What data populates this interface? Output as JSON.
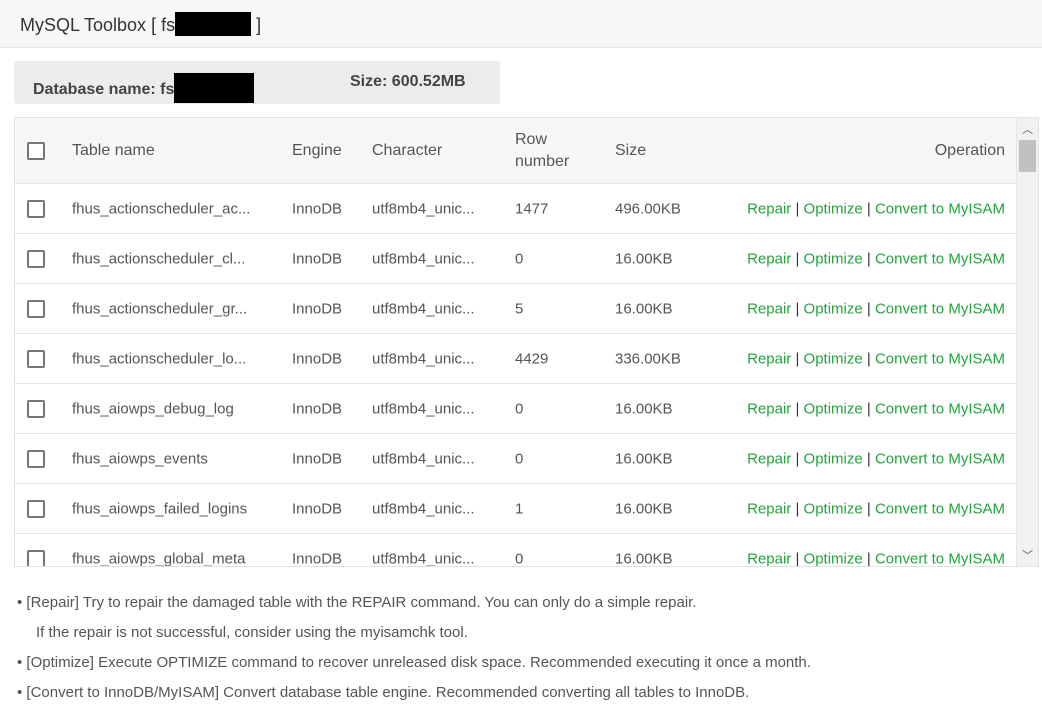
{
  "header": {
    "title_prefix": "MySQL Toolbox [ fs",
    "title_suffix": " ]"
  },
  "info": {
    "db_label": "Database name:  fs",
    "size_label": "Size:  600.52MB"
  },
  "table": {
    "columns": [
      "Table name",
      "Engine",
      "Character",
      "Row number",
      "Size",
      "Operation"
    ],
    "rows": [
      {
        "name": "fhus_actionscheduler_ac...",
        "engine": "InnoDB",
        "charset": "utf8mb4_unic...",
        "rows": "1477",
        "size": "496.00KB"
      },
      {
        "name": "fhus_actionscheduler_cl...",
        "engine": "InnoDB",
        "charset": "utf8mb4_unic...",
        "rows": "0",
        "size": "16.00KB"
      },
      {
        "name": "fhus_actionscheduler_gr...",
        "engine": "InnoDB",
        "charset": "utf8mb4_unic...",
        "rows": "5",
        "size": "16.00KB"
      },
      {
        "name": "fhus_actionscheduler_lo...",
        "engine": "InnoDB",
        "charset": "utf8mb4_unic...",
        "rows": "4429",
        "size": "336.00KB"
      },
      {
        "name": "fhus_aiowps_debug_log",
        "engine": "InnoDB",
        "charset": "utf8mb4_unic...",
        "rows": "0",
        "size": "16.00KB"
      },
      {
        "name": "fhus_aiowps_events",
        "engine": "InnoDB",
        "charset": "utf8mb4_unic...",
        "rows": "0",
        "size": "16.00KB"
      },
      {
        "name": "fhus_aiowps_failed_logins",
        "engine": "InnoDB",
        "charset": "utf8mb4_unic...",
        "rows": "1",
        "size": "16.00KB"
      },
      {
        "name": "fhus_aiowps_global_meta",
        "engine": "InnoDB",
        "charset": "utf8mb4_unic...",
        "rows": "0",
        "size": "16.00KB"
      }
    ],
    "ops": {
      "repair": "Repair",
      "optimize": "Optimize",
      "convert": "Convert to MyISAM",
      "sep": " | "
    }
  },
  "notes": [
    "• [Repair] Try to repair the damaged table with the REPAIR command. You can only do a simple repair.",
    "If the repair is not successful, consider using the myisamchk tool.",
    "• [Optimize] Execute OPTIMIZE command to recover unreleased disk space. Recommended executing it once a month.",
    "• [Convert to InnoDB/MyISAM] Convert database table engine. Recommended converting all tables to InnoDB."
  ],
  "colors": {
    "link": "#20a53a"
  }
}
